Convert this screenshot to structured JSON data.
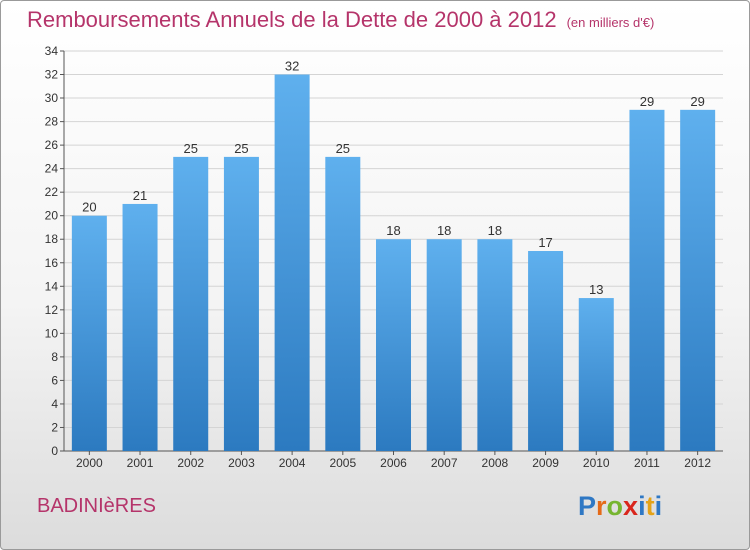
{
  "title": "Remboursements Annuels de la Dette de 2000 à 2012",
  "unit": "(en milliers d'€)",
  "commune": "BADINIèRES",
  "logo": {
    "letters": [
      "P",
      "r",
      "o",
      "x",
      "i",
      "t",
      "i"
    ],
    "colors": [
      "#2f78c4",
      "#e56a18",
      "#76b530",
      "#d9261c",
      "#2f78c4",
      "#e5a318",
      "#2f78c4"
    ]
  },
  "colors": {
    "bar_light": "#5fb0ee",
    "bar_dark": "#2c7ac0",
    "title": "#b5346a"
  },
  "chart_data": {
    "type": "bar",
    "title": "Remboursements Annuels de la Dette de 2000 à 2012",
    "xlabel": "",
    "ylabel": "",
    "categories": [
      "2000",
      "2001",
      "2002",
      "2003",
      "2004",
      "2005",
      "2006",
      "2007",
      "2008",
      "2009",
      "2010",
      "2011",
      "2012"
    ],
    "values": [
      20,
      21,
      25,
      25,
      32,
      25,
      18,
      18,
      18,
      17,
      13,
      29,
      29
    ],
    "value_labels": [
      "20",
      "21",
      "25",
      "25",
      "32",
      "25",
      "18",
      "18",
      "18",
      "17",
      "13",
      "29",
      "29"
    ],
    "ylim": [
      0,
      34
    ],
    "yticks": [
      "0",
      "2",
      "4",
      "6",
      "8",
      "10",
      "12",
      "14",
      "16",
      "18",
      "20",
      "22",
      "24",
      "26",
      "28",
      "30",
      "32",
      "34"
    ],
    "grid": true
  }
}
